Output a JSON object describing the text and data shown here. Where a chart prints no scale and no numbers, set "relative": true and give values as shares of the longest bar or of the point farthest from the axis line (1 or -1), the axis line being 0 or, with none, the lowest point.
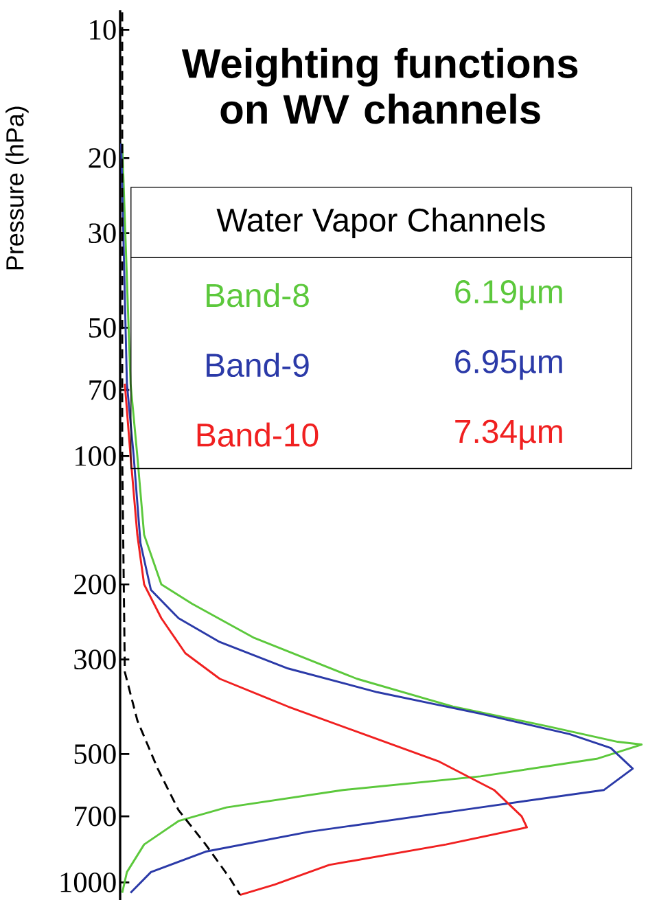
{
  "chart_data": {
    "type": "line",
    "title": "Weighting functions on WV channels",
    "ylabel": "Pressure (hPa)",
    "orientation": "horizontal",
    "relative": true,
    "log": "y",
    "tick_labels": "y",
    "legend": "top",
    "legend_title": "Water Vapor Channels",
    "ylim": [
      1100,
      9
    ],
    "yticks": [
      10,
      20,
      30,
      50,
      70,
      100,
      200,
      300,
      500,
      700,
      1000
    ],
    "series": [
      {
        "name": "Band-8",
        "color": "#5cc83c",
        "x": [
          18.5,
          67.6,
          100,
          153,
          200,
          222,
          267,
          333,
          387,
          431,
          468,
          475,
          513,
          564,
          607,
          667,
          718,
          815,
          946,
          1058
        ],
        "values": [
          0.004,
          0.02,
          0.033,
          0.046,
          0.079,
          0.138,
          0.257,
          0.454,
          0.638,
          0.822,
          0.954,
          1.0,
          0.914,
          0.691,
          0.428,
          0.204,
          0.112,
          0.046,
          0.013,
          0.004
        ]
      },
      {
        "name": "Band-9",
        "color": "#2b3aa8",
        "x": [
          18.5,
          67.6,
          100,
          160,
          206,
          240,
          273,
          315,
          358,
          402,
          449,
          484,
          541,
          607,
          667,
          761,
          847,
          946,
          1058
        ],
        "values": [
          0.002,
          0.013,
          0.026,
          0.039,
          0.059,
          0.112,
          0.191,
          0.322,
          0.493,
          0.691,
          0.862,
          0.941,
          0.983,
          0.928,
          0.691,
          0.362,
          0.164,
          0.059,
          0.02
        ]
      },
      {
        "name": "Band-10",
        "color": "#f02020",
        "x": [
          67.6,
          100,
          153,
          200,
          240,
          290,
          333,
          387,
          449,
          521,
          607,
          700,
          743,
          815,
          910,
          1012,
          1070
        ],
        "values": [
          0.009,
          0.02,
          0.033,
          0.046,
          0.079,
          0.125,
          0.191,
          0.322,
          0.467,
          0.612,
          0.717,
          0.77,
          0.78,
          0.625,
          0.401,
          0.296,
          0.23
        ]
      },
      {
        "color": "#000000",
        "line_style": "dashed",
        "x": [
          9.1,
          100,
          321,
          417,
          541,
          677,
          815,
          980,
          1070
        ],
        "values": [
          0.004,
          0.004,
          0.009,
          0.033,
          0.072,
          0.112,
          0.164,
          0.211,
          0.23
        ]
      }
    ],
    "annotations": [
      "6.19µm",
      "6.95µm",
      "7.34µm"
    ]
  }
}
